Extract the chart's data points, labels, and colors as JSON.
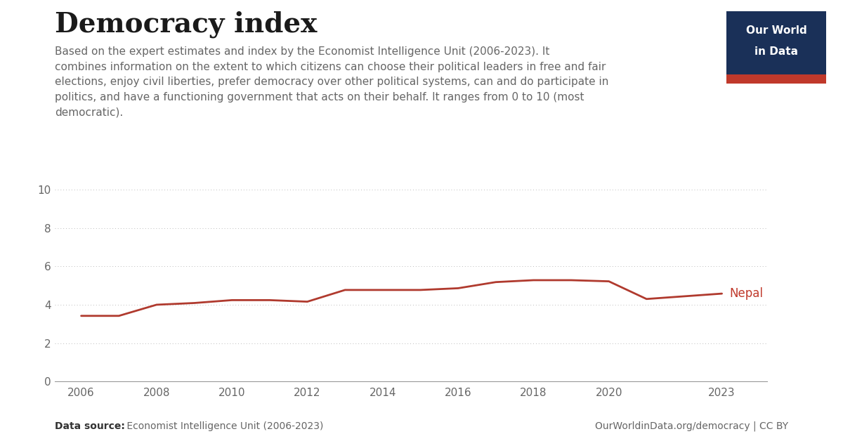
{
  "title": "Democracy index",
  "subtitle": "Based on the expert estimates and index by the Economist Intelligence Unit (2006-2023). It\ncombines information on the extent to which citizens can choose their political leaders in free and fair\nelections, enjoy civil liberties, prefer democracy over other political systems, can and do participate in\npolitics, and have a functioning government that acts on their behalf. It ranges from 0 to 10 (most\ndemocratic).",
  "years": [
    2006,
    2007,
    2008,
    2009,
    2010,
    2011,
    2012,
    2013,
    2014,
    2015,
    2016,
    2017,
    2018,
    2019,
    2020,
    2021,
    2022,
    2023
  ],
  "nepal_values": [
    3.42,
    3.42,
    4.0,
    4.09,
    4.24,
    4.24,
    4.16,
    4.77,
    4.77,
    4.77,
    4.86,
    5.18,
    5.28,
    5.28,
    5.22,
    4.3,
    4.44,
    4.58
  ],
  "line_color": "#b03a2e",
  "line_width": 2.0,
  "background_color": "#ffffff",
  "text_color": "#333333",
  "subtitle_color": "#666666",
  "grid_color": "#bbbbbb",
  "tick_color": "#666666",
  "ylim": [
    0,
    10
  ],
  "yticks": [
    0,
    2,
    4,
    6,
    8,
    10
  ],
  "xticks": [
    2006,
    2008,
    2010,
    2012,
    2014,
    2016,
    2018,
    2020,
    2023
  ],
  "footer_source_bold": "Data source:",
  "footer_source_normal": " Economist Intelligence Unit (2006-2023)",
  "footer_right": "OurWorldinData.org/democracy | CC BY",
  "country_label": "Nepal",
  "country_label_color": "#c0392b",
  "owid_box_bg": "#1a3058",
  "owid_accent": "#c0392b",
  "owid_line1": "Our World",
  "owid_line2": "in Data"
}
